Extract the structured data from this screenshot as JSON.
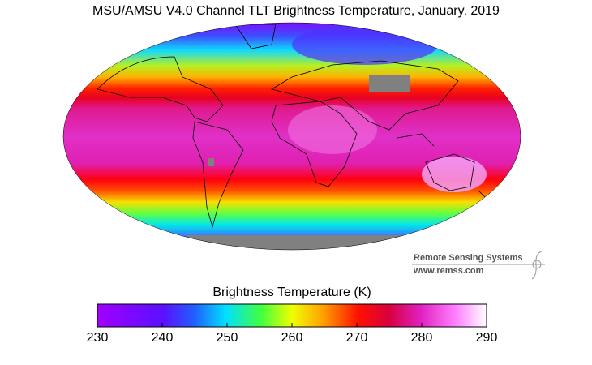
{
  "title": "MSU/AMSU V4.0 Channel TLT Brightness Temperature, January, 2019",
  "colorbar": {
    "label": "Brightness Temperature (K)",
    "range": [
      230,
      290
    ],
    "ticks": [
      230,
      240,
      250,
      260,
      270,
      280,
      290
    ]
  },
  "credit": {
    "name": "Remote Sensing Systems",
    "url": "www.remss.com"
  }
}
